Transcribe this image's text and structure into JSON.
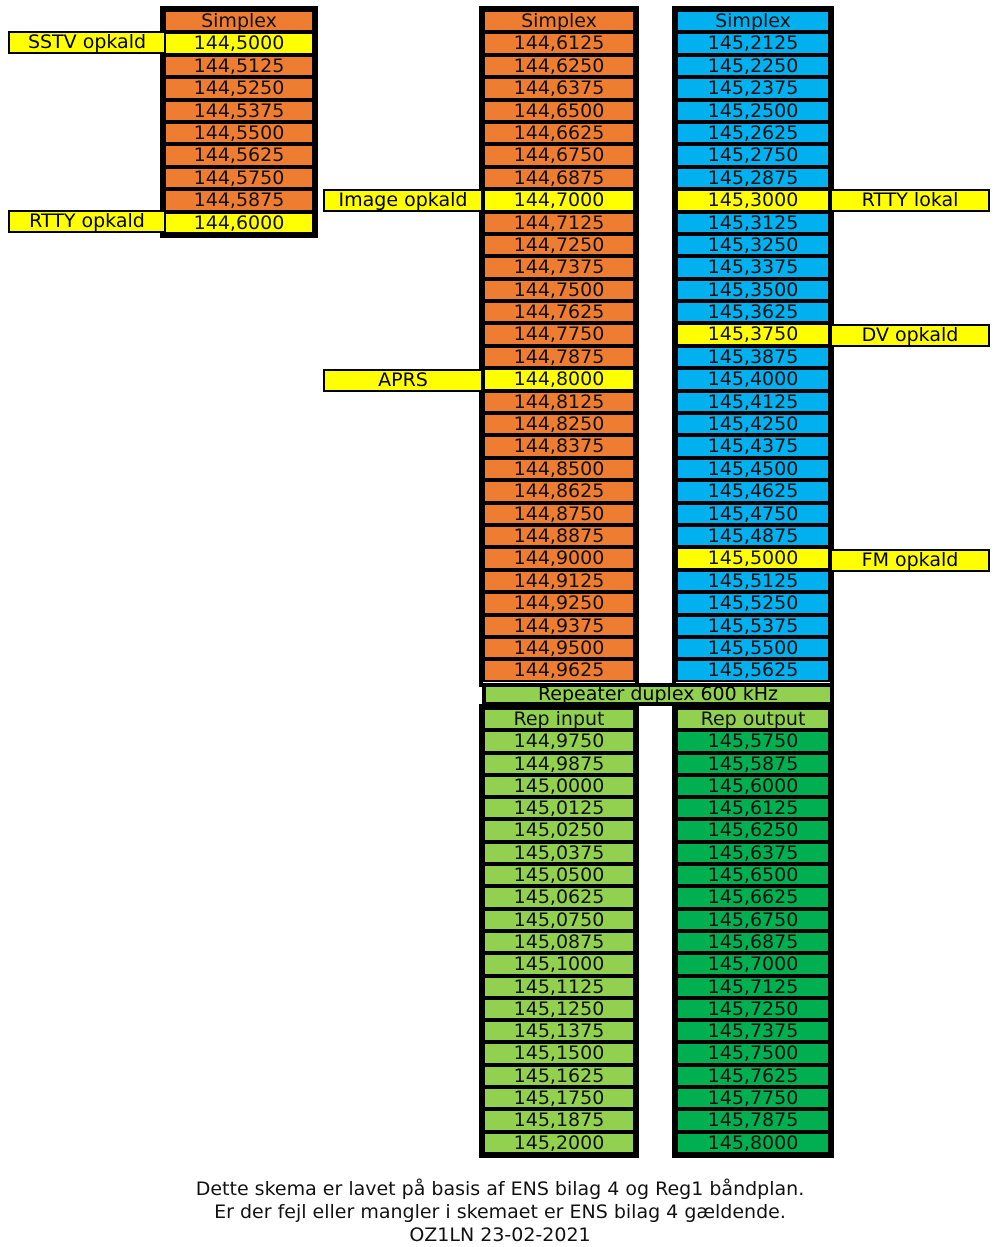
{
  "columns": {
    "col1": {
      "header": "Simplex",
      "rows": [
        {
          "value": "144,5000",
          "highlight": true
        },
        {
          "value": "144,5125"
        },
        {
          "value": "144,5250"
        },
        {
          "value": "144,5375"
        },
        {
          "value": "144,5500"
        },
        {
          "value": "144,5625"
        },
        {
          "value": "144,5750"
        },
        {
          "value": "144,5875"
        },
        {
          "value": "144,6000",
          "highlight": true
        }
      ]
    },
    "col2": {
      "header": "Simplex",
      "rows": [
        {
          "value": "144,6125"
        },
        {
          "value": "144,6250"
        },
        {
          "value": "144,6375"
        },
        {
          "value": "144,6500"
        },
        {
          "value": "144,6625"
        },
        {
          "value": "144,6750"
        },
        {
          "value": "144,6875"
        },
        {
          "value": "144,7000",
          "highlight": true
        },
        {
          "value": "144,7125"
        },
        {
          "value": "144,7250"
        },
        {
          "value": "144,7375"
        },
        {
          "value": "144,7500"
        },
        {
          "value": "144,7625"
        },
        {
          "value": "144,7750"
        },
        {
          "value": "144,7875"
        },
        {
          "value": "144,8000",
          "highlight": true
        },
        {
          "value": "144,8125"
        },
        {
          "value": "144,8250"
        },
        {
          "value": "144,8375"
        },
        {
          "value": "144,8500"
        },
        {
          "value": "144,8625"
        },
        {
          "value": "144,8750"
        },
        {
          "value": "144,8875"
        },
        {
          "value": "144,9000"
        },
        {
          "value": "144,9125"
        },
        {
          "value": "144,9250"
        },
        {
          "value": "144,9375"
        },
        {
          "value": "144,9500"
        },
        {
          "value": "144,9625"
        }
      ]
    },
    "col3": {
      "header": "Simplex",
      "rows": [
        {
          "value": "145,2125"
        },
        {
          "value": "145,2250"
        },
        {
          "value": "145,2375"
        },
        {
          "value": "145,2500"
        },
        {
          "value": "145,2625"
        },
        {
          "value": "145,2750"
        },
        {
          "value": "145,2875"
        },
        {
          "value": "145,3000",
          "highlight": true
        },
        {
          "value": "145,3125"
        },
        {
          "value": "145,3250"
        },
        {
          "value": "145,3375"
        },
        {
          "value": "145,3500"
        },
        {
          "value": "145,3625"
        },
        {
          "value": "145,3750",
          "highlight": true
        },
        {
          "value": "145,3875"
        },
        {
          "value": "145,4000"
        },
        {
          "value": "145,4125"
        },
        {
          "value": "145,4250"
        },
        {
          "value": "145,4375"
        },
        {
          "value": "145,4500"
        },
        {
          "value": "145,4625"
        },
        {
          "value": "145,4750"
        },
        {
          "value": "145,4875"
        },
        {
          "value": "145,5000",
          "highlight": true
        },
        {
          "value": "145,5125"
        },
        {
          "value": "145,5250"
        },
        {
          "value": "145,5375"
        },
        {
          "value": "145,5500"
        },
        {
          "value": "145,5625"
        }
      ]
    }
  },
  "repeater_label": "Repeater duplex 600 kHz",
  "rep_input": {
    "header": "Rep input",
    "rows": [
      "144,9750",
      "144,9875",
      "145,0000",
      "145,0125",
      "145,0250",
      "145,0375",
      "145,0500",
      "145,0625",
      "145,0750",
      "145,0875",
      "145,1000",
      "145,1125",
      "145,1250",
      "145,1375",
      "145,1500",
      "145,1625",
      "145,1750",
      "145,1875",
      "145,2000"
    ]
  },
  "rep_output": {
    "header": "Rep output",
    "rows": [
      "145,5750",
      "145,5875",
      "145,6000",
      "145,6125",
      "145,6250",
      "145,6375",
      "145,6500",
      "145,6625",
      "145,6750",
      "145,6875",
      "145,7000",
      "145,7125",
      "145,7250",
      "145,7375",
      "145,7500",
      "145,7625",
      "145,7750",
      "145,7875",
      "145,8000"
    ]
  },
  "labels": {
    "sstv": "SSTV opkald",
    "rtty_opkald": "RTTY opkald",
    "image": "Image opkald",
    "aprs": "APRS",
    "rtty_lokal": "RTTY lokal",
    "dv": "DV opkald",
    "fm": "FM opkald"
  },
  "footer": {
    "line1": "Dette skema er lavet på basis af ENS bilag 4 og Reg1 båndplan.",
    "line2": "Er der fejl eller mangler i skemaet er ENS bilag 4 gældende.",
    "line3": "OZ1LN 23-02-2021"
  },
  "colors": {
    "orange": "#ee7d31",
    "blue": "#00b0ef",
    "light_green": "#92d050",
    "dark_green": "#00b050",
    "highlight": "#ffff00"
  }
}
